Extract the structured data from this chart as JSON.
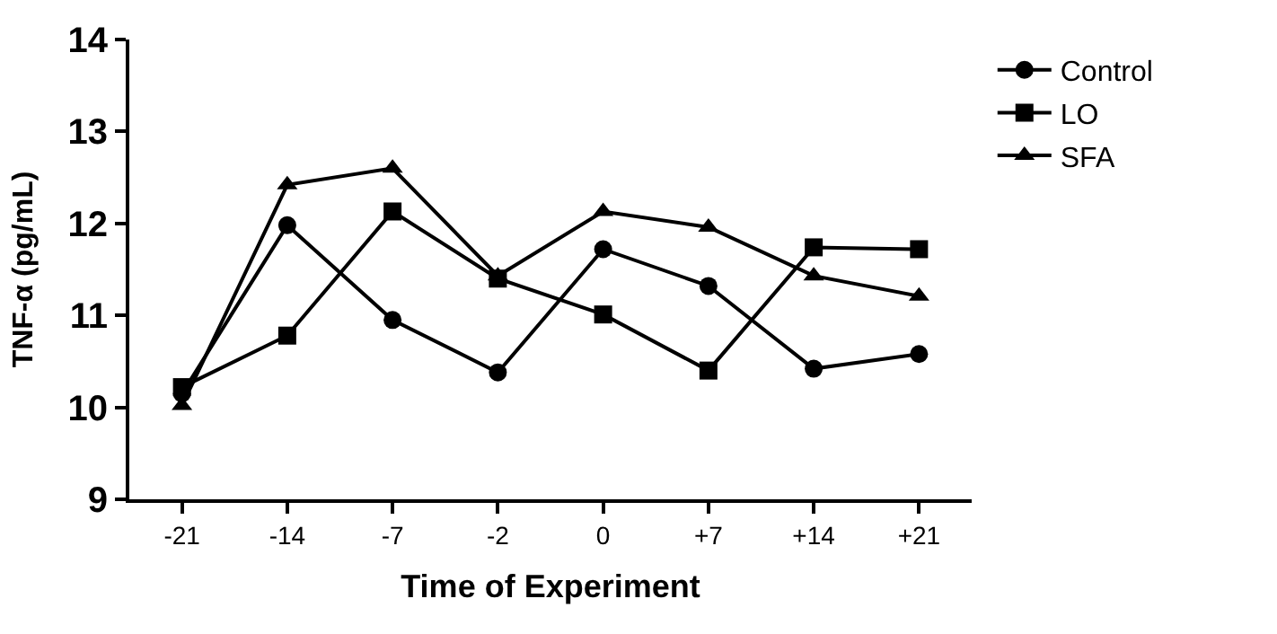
{
  "chart_data": {
    "type": "line",
    "xlabel": "Time of Experiment",
    "ylabel": "TNF-α (pg/mL)",
    "categories": [
      "-21",
      "-14",
      "-7",
      "-2",
      "0",
      "+7",
      "+14",
      "+21"
    ],
    "series": [
      {
        "name": "Control",
        "color": "#000000",
        "marker": "circle",
        "values": [
          10.15,
          11.98,
          10.95,
          10.38,
          11.72,
          11.32,
          10.42,
          10.58
        ]
      },
      {
        "name": "LO",
        "color": "#000000",
        "marker": "square",
        "values": [
          10.22,
          10.78,
          12.13,
          11.4,
          11.01,
          10.4,
          11.74,
          11.72
        ]
      },
      {
        "name": "SFA",
        "color": "#000000",
        "marker": "triangle",
        "values": [
          10.02,
          12.42,
          12.6,
          11.43,
          12.13,
          11.96,
          11.43,
          11.21
        ]
      }
    ],
    "ylim": [
      9,
      14
    ],
    "yticks": [
      9,
      10,
      11,
      12,
      13,
      14
    ],
    "grid": false,
    "legend": "top right",
    "line_style": "solid"
  }
}
